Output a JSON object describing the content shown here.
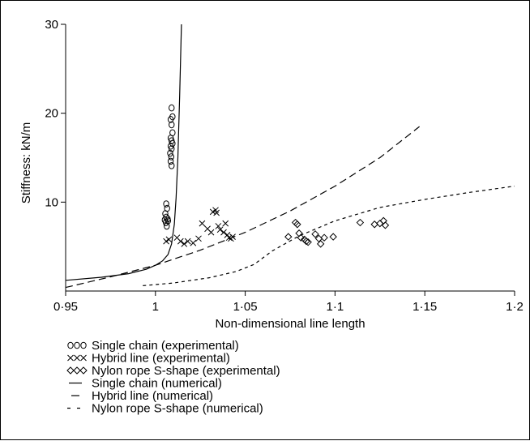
{
  "chart_data": {
    "type": "scatter",
    "xlabel": "Non-dimensional line length",
    "ylabel": "Stiffness: kN/m",
    "xlim": [
      0.95,
      1.2
    ],
    "ylim": [
      0,
      30
    ],
    "x_ticks": [
      "0·95",
      "1",
      "1·05",
      "1·1",
      "1·15",
      "1·2"
    ],
    "x_tick_values": [
      0.95,
      1.0,
      1.05,
      1.1,
      1.15,
      1.2
    ],
    "y_ticks": [
      "10",
      "20",
      "30"
    ],
    "y_tick_values": [
      10,
      20,
      30
    ],
    "grid": false,
    "legend_position": "bottom",
    "series": [
      {
        "name": "Single chain (experimental)",
        "kind": "scatter",
        "marker": "circle",
        "legend_symbol": "○○○",
        "points": [
          [
            1.009,
            20.6
          ],
          [
            1.0095,
            19.6
          ],
          [
            1.0085,
            19.3
          ],
          [
            1.009,
            18.7
          ],
          [
            1.0095,
            17.8
          ],
          [
            1.0085,
            17.2
          ],
          [
            1.009,
            16.9
          ],
          [
            1.0095,
            16.6
          ],
          [
            1.0085,
            16.3
          ],
          [
            1.009,
            16.0
          ],
          [
            1.0082,
            15.5
          ],
          [
            1.0088,
            15.1
          ],
          [
            1.0085,
            14.6
          ],
          [
            1.009,
            14.1
          ],
          [
            1.006,
            9.8
          ],
          [
            1.0065,
            9.3
          ],
          [
            1.0055,
            8.7
          ],
          [
            1.006,
            8.3
          ],
          [
            1.0068,
            8.1
          ],
          [
            1.0058,
            7.7
          ],
          [
            1.0063,
            7.3
          ],
          [
            1.007,
            7.9
          ],
          [
            1.0052,
            8.0
          ]
        ]
      },
      {
        "name": "Hybrid line (experimental)",
        "kind": "scatter",
        "marker": "x",
        "legend_symbol": "×××",
        "points": [
          [
            1.006,
            5.6
          ],
          [
            1.0075,
            5.8
          ],
          [
            1.012,
            6.0
          ],
          [
            1.014,
            5.6
          ],
          [
            1.016,
            5.3
          ],
          [
            1.018,
            5.6
          ],
          [
            1.021,
            5.4
          ],
          [
            1.024,
            5.9
          ],
          [
            1.026,
            7.6
          ],
          [
            1.029,
            7.0
          ],
          [
            1.031,
            6.6
          ],
          [
            1.032,
            8.9
          ],
          [
            1.0335,
            9.1
          ],
          [
            1.034,
            8.8
          ],
          [
            1.035,
            7.3
          ],
          [
            1.036,
            6.9
          ],
          [
            1.038,
            6.6
          ],
          [
            1.039,
            7.6
          ],
          [
            1.04,
            6.3
          ],
          [
            1.041,
            6.0
          ],
          [
            1.042,
            5.9
          ],
          [
            1.043,
            6.1
          ]
        ]
      },
      {
        "name": "Nylon rope S-shape (experimental)",
        "kind": "scatter",
        "marker": "diamond",
        "legend_symbol": "◇◇◇",
        "points": [
          [
            1.074,
            6.1
          ],
          [
            1.078,
            7.7
          ],
          [
            1.079,
            7.5
          ],
          [
            1.08,
            6.5
          ],
          [
            1.081,
            6.0
          ],
          [
            1.083,
            5.8
          ],
          [
            1.084,
            5.6
          ],
          [
            1.085,
            5.5
          ],
          [
            1.089,
            6.4
          ],
          [
            1.091,
            5.9
          ],
          [
            1.092,
            5.3
          ],
          [
            1.094,
            6.0
          ],
          [
            1.099,
            6.1
          ],
          [
            1.114,
            7.7
          ],
          [
            1.122,
            7.5
          ],
          [
            1.125,
            7.6
          ],
          [
            1.127,
            7.9
          ],
          [
            1.128,
            7.4
          ]
        ]
      },
      {
        "name": "Single chain (numerical)",
        "kind": "line",
        "dash": "solid",
        "legend_symbol": "—",
        "points": [
          [
            0.95,
            1.2
          ],
          [
            0.97,
            1.55
          ],
          [
            0.985,
            1.95
          ],
          [
            0.995,
            2.45
          ],
          [
            1.0,
            2.9
          ],
          [
            1.004,
            3.4
          ],
          [
            1.007,
            4.1
          ],
          [
            1.009,
            5.3
          ],
          [
            1.0105,
            7.5
          ],
          [
            1.0115,
            10.5
          ],
          [
            1.0125,
            15.0
          ],
          [
            1.0135,
            22.0
          ],
          [
            1.0145,
            30.0
          ]
        ]
      },
      {
        "name": "Hybrid line (numerical)",
        "kind": "line",
        "dash": "long-dash",
        "legend_symbol": "—",
        "points": [
          [
            0.95,
            0.4
          ],
          [
            0.975,
            1.6
          ],
          [
            1.0,
            2.9
          ],
          [
            1.025,
            4.6
          ],
          [
            1.05,
            6.6
          ],
          [
            1.075,
            9.0
          ],
          [
            1.1,
            11.8
          ],
          [
            1.125,
            15.0
          ],
          [
            1.147,
            18.5
          ]
        ]
      },
      {
        "name": "Nylon rope S-shape (numerical)",
        "kind": "line",
        "dash": "short-dash",
        "legend_symbol": "- -",
        "points": [
          [
            0.993,
            0.6
          ],
          [
            1.01,
            0.9
          ],
          [
            1.03,
            1.5
          ],
          [
            1.045,
            2.2
          ],
          [
            1.055,
            3.0
          ],
          [
            1.065,
            4.5
          ],
          [
            1.08,
            6.2
          ],
          [
            1.1,
            7.9
          ],
          [
            1.125,
            9.4
          ],
          [
            1.15,
            10.3
          ],
          [
            1.175,
            11.1
          ],
          [
            1.2,
            11.8
          ]
        ]
      }
    ]
  }
}
